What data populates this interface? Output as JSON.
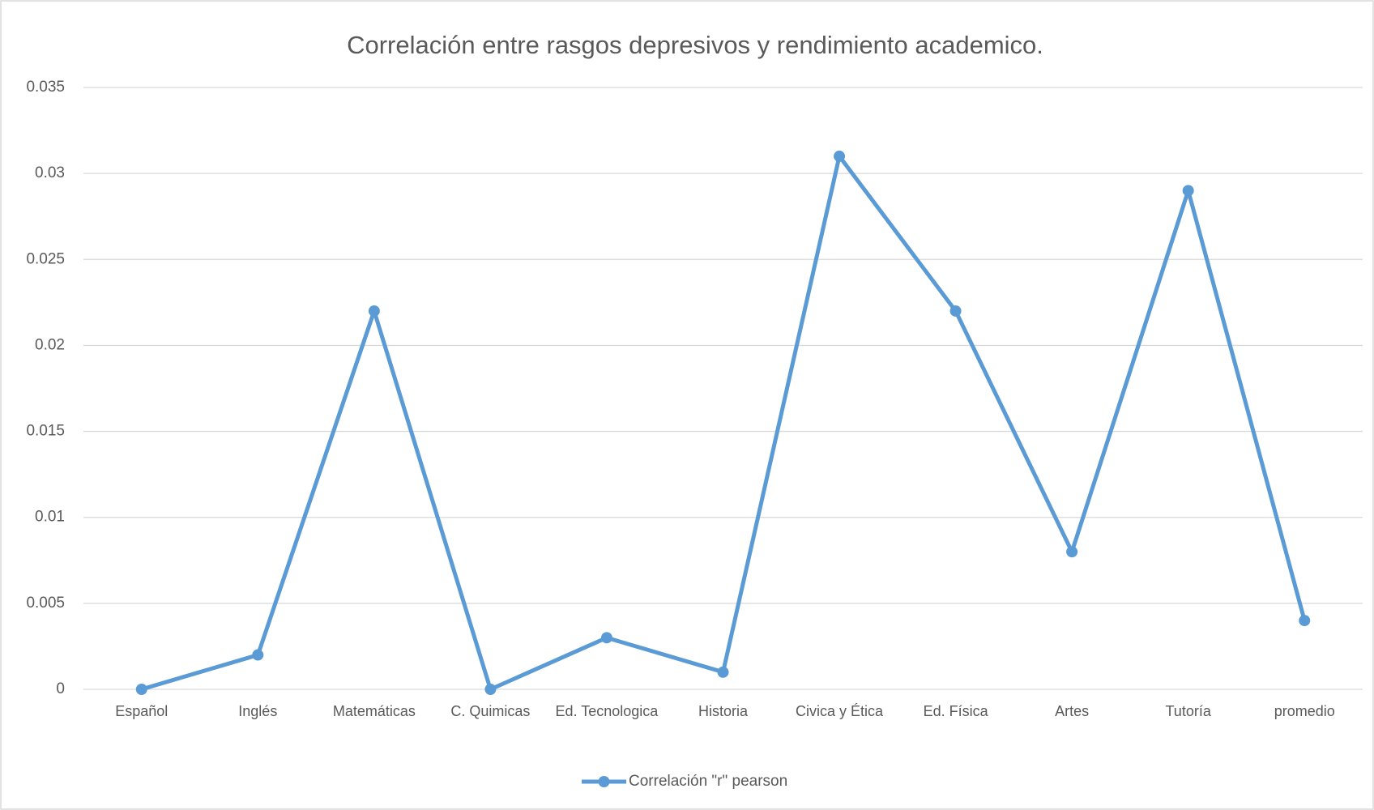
{
  "chart_data": {
    "type": "line",
    "title": "Correlación entre rasgos depresivos y rendimiento academico.",
    "categories": [
      "Español",
      "Inglés",
      "Matemáticas",
      "C. Quimicas",
      "Ed. Tecnologica",
      "Historia",
      "Civica y Ética",
      "Ed. Física",
      "Artes",
      "Tutoría",
      "promedio"
    ],
    "series": [
      {
        "name": "Correlación \"r\" pearson",
        "color": "#5b9bd5",
        "values": [
          0,
          0.002,
          0.022,
          0,
          0.003,
          0.001,
          0.031,
          0.022,
          0.008,
          0.029,
          0.004
        ]
      }
    ],
    "ylim": [
      0,
      0.035
    ],
    "yticks": [
      0,
      0.005,
      0.01,
      0.015,
      0.02,
      0.025,
      0.03,
      0.035
    ],
    "grid": true,
    "legend": "bottom"
  }
}
